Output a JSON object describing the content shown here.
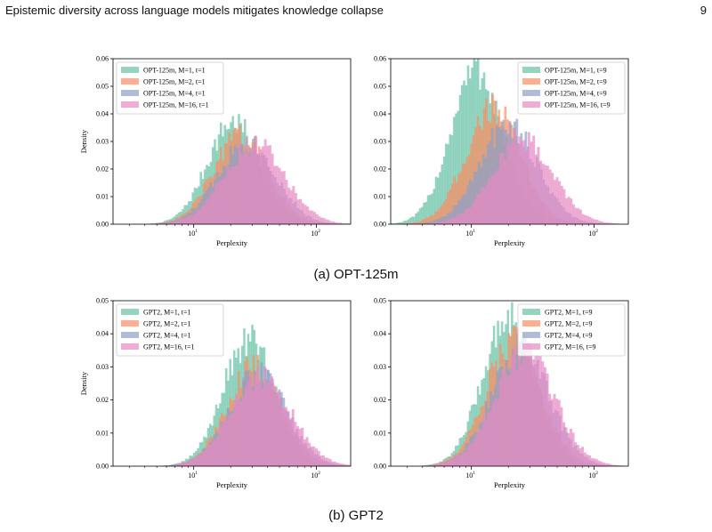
{
  "header": {
    "title": "Epistemic diversity across language models mitigates knowledge collapse",
    "page_number": "9"
  },
  "captions": {
    "a": "(a) OPT-125m",
    "b": "(b) GPT2"
  },
  "colors": {
    "M1": "#66c2a5",
    "M2": "#fc8d62",
    "M4": "#8da0cb",
    "M16": "#e78ac3"
  },
  "chart_data": [
    {
      "type": "histogram",
      "xlabel": "Perplexity",
      "ylabel": "Density",
      "xscale": "log",
      "xticks": [
        "10^1",
        "10^2"
      ],
      "ylim": [
        0,
        0.06
      ],
      "yticks": [
        "0.00",
        "0.01",
        "0.02",
        "0.03",
        "0.04",
        "0.05",
        "0.06"
      ],
      "legend_position": "top-left",
      "series": [
        {
          "name": "OPT-125m, M=1, t=1",
          "peak_x": 21,
          "peak_y": 0.037
        },
        {
          "name": "OPT-125m, M=2, t=1",
          "peak_x": 24,
          "peak_y": 0.032
        },
        {
          "name": "OPT-125m, M=4, t=1",
          "peak_x": 27,
          "peak_y": 0.03
        },
        {
          "name": "OPT-125m, M=16, t=1",
          "peak_x": 31,
          "peak_y": 0.029
        }
      ]
    },
    {
      "type": "histogram",
      "xlabel": "Perplexity",
      "ylabel": "",
      "xscale": "log",
      "xticks": [
        "10^1",
        "10^2"
      ],
      "ylim": [
        0,
        0.06
      ],
      "yticks": [
        "0.00",
        "0.01",
        "0.02",
        "0.03",
        "0.04",
        "0.05",
        "0.06"
      ],
      "legend_position": "top-right",
      "series": [
        {
          "name": "OPT-125m, M=1, t=9",
          "peak_x": 11,
          "peak_y": 0.056
        },
        {
          "name": "OPT-125m, M=2, t=9",
          "peak_x": 15,
          "peak_y": 0.042
        },
        {
          "name": "OPT-125m, M=4, t=9",
          "peak_x": 20,
          "peak_y": 0.036
        },
        {
          "name": "OPT-125m, M=16, t=9",
          "peak_x": 26,
          "peak_y": 0.031
        }
      ]
    },
    {
      "type": "histogram",
      "xlabel": "Perplexity",
      "ylabel": "Density",
      "xscale": "log",
      "xticks": [
        "10^1",
        "10^2"
      ],
      "ylim": [
        0,
        0.05
      ],
      "yticks": [
        "0.00",
        "0.01",
        "0.02",
        "0.03",
        "0.04",
        "0.05"
      ],
      "legend_position": "top-left",
      "series": [
        {
          "name": "GPT2, M=1, t=1",
          "peak_x": 28,
          "peak_y": 0.038
        },
        {
          "name": "GPT2, M=2, t=1",
          "peak_x": 31,
          "peak_y": 0.03
        },
        {
          "name": "GPT2, M=4, t=1",
          "peak_x": 33,
          "peak_y": 0.028
        },
        {
          "name": "GPT2, M=16, t=1",
          "peak_x": 35,
          "peak_y": 0.027
        }
      ]
    },
    {
      "type": "histogram",
      "xlabel": "Perplexity",
      "ylabel": "",
      "xscale": "log",
      "xticks": [
        "10^1",
        "10^2"
      ],
      "ylim": [
        0,
        0.05
      ],
      "yticks": [
        "0.00",
        "0.01",
        "0.02",
        "0.03",
        "0.04",
        "0.05"
      ],
      "legend_position": "top-right",
      "series": [
        {
          "name": "GPT2, M=1, t=9",
          "peak_x": 20,
          "peak_y": 0.045
        },
        {
          "name": "GPT2, M=2, t=9",
          "peak_x": 22,
          "peak_y": 0.038
        },
        {
          "name": "GPT2, M=4, t=9",
          "peak_x": 25,
          "peak_y": 0.036
        },
        {
          "name": "GPT2, M=16, t=9",
          "peak_x": 27,
          "peak_y": 0.034
        }
      ]
    }
  ]
}
